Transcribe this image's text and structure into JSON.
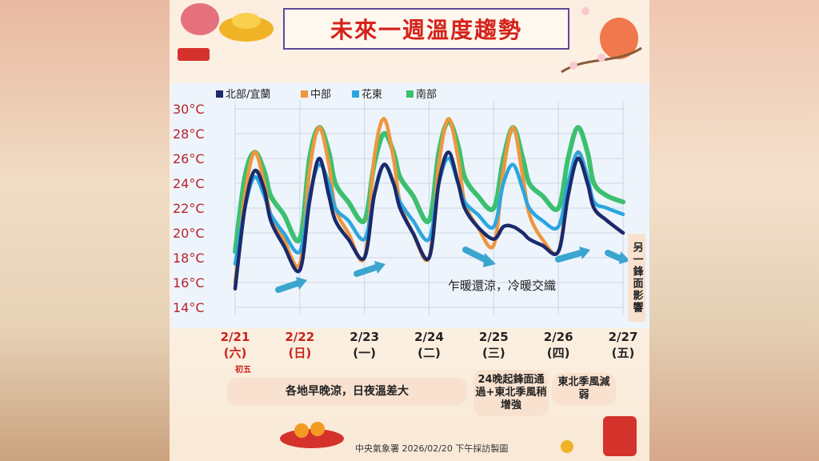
{
  "title": "未來一週溫度趨勢",
  "notes": {
    "warm_cold": "乍暖還涼，冷暖交織",
    "lunar": "初五",
    "front_other": "另一鋒面影響",
    "general": "各地早晚涼，日夜溫差大",
    "front_24": "24晚起鋒面通過+東北季風稍增強",
    "monsoon_weak": "東北季風減弱",
    "footer": "中央氣象署 2026/02/20 下午採訪製圖"
  },
  "colors": {
    "north": "#1a2a6c",
    "central": "#f0963c",
    "east": "#2aa6df",
    "south": "#3cc070",
    "weekend": "#c8221b",
    "weekday": "#222222",
    "arrow": "#3aa6cf"
  },
  "chart_data": {
    "type": "line",
    "ylim": [
      14,
      30
    ],
    "yticks": [
      "14°C",
      "16°C",
      "18°C",
      "20°C",
      "22°C",
      "24°C",
      "26°C",
      "28°C",
      "30°C"
    ],
    "ytick_values": [
      14,
      16,
      18,
      20,
      22,
      24,
      26,
      28,
      30
    ],
    "days": [
      {
        "date": "2/21",
        "weekday": "(六)",
        "weekend": true
      },
      {
        "date": "2/22",
        "weekday": "(日)",
        "weekend": true
      },
      {
        "date": "2/23",
        "weekday": "(一)",
        "weekend": false
      },
      {
        "date": "2/24",
        "weekday": "(二)",
        "weekend": false
      },
      {
        "date": "2/25",
        "weekday": "(三)",
        "weekend": false
      },
      {
        "date": "2/26",
        "weekday": "(四)",
        "weekend": false
      },
      {
        "date": "2/27",
        "weekday": "(五)",
        "weekend": false
      }
    ],
    "x": [
      0,
      0.15,
      0.3,
      0.45,
      0.55,
      0.75,
      1,
      1.15,
      1.3,
      1.45,
      1.55,
      1.75,
      2,
      2.15,
      2.3,
      2.45,
      2.55,
      2.75,
      3,
      3.15,
      3.3,
      3.45,
      3.55,
      3.75,
      4,
      4.15,
      4.3,
      4.45,
      4.55,
      4.75,
      5,
      5.15,
      5.3,
      5.45,
      5.55,
      5.75,
      6
    ],
    "series": [
      {
        "name": "北部/宜蘭",
        "key": "north",
        "values": [
          15.5,
          22,
          25,
          23.5,
          21,
          19,
          17,
          22.5,
          26,
          23,
          21,
          19.5,
          18,
          23,
          25.5,
          24,
          22,
          20,
          18,
          24,
          26.5,
          24,
          22,
          20.5,
          19.5,
          20.5,
          20.5,
          20,
          19.5,
          19,
          18.5,
          23,
          26,
          24,
          22,
          21,
          20
        ]
      },
      {
        "name": "中部",
        "key": "central",
        "values": [
          16,
          23,
          26.5,
          24,
          21.5,
          19.5,
          17.5,
          25,
          28.5,
          25.5,
          22,
          20,
          18,
          26,
          29.2,
          26,
          22.5,
          20,
          18,
          25.5,
          29.2,
          26,
          22.5,
          20.5,
          19,
          25,
          28.5,
          24.5,
          21.5,
          19.5,
          18.5,
          23.5,
          26.5,
          24.5,
          22,
          21,
          20
        ]
      },
      {
        "name": "花東",
        "key": "east",
        "values": [
          17.5,
          22,
          24.5,
          23,
          21.5,
          20,
          18.5,
          23,
          25.5,
          24,
          22,
          21,
          19.5,
          23,
          25.5,
          24,
          22.5,
          21,
          19.5,
          24,
          26,
          24,
          22.5,
          21.5,
          20.5,
          24,
          25.5,
          23.5,
          22,
          21,
          20.5,
          24,
          26.5,
          24.5,
          22.5,
          22,
          21.5
        ]
      },
      {
        "name": "南部",
        "key": "south",
        "values": [
          18.5,
          24.5,
          26.5,
          25,
          23,
          21.5,
          19.5,
          26,
          28.5,
          26.5,
          24,
          22.5,
          21,
          25.5,
          28,
          26.5,
          24.5,
          23,
          21,
          26.5,
          29,
          27,
          24.5,
          23,
          22,
          26,
          28.5,
          26,
          24,
          23,
          22,
          26,
          28.5,
          26.5,
          24,
          23,
          22.5
        ]
      }
    ]
  }
}
